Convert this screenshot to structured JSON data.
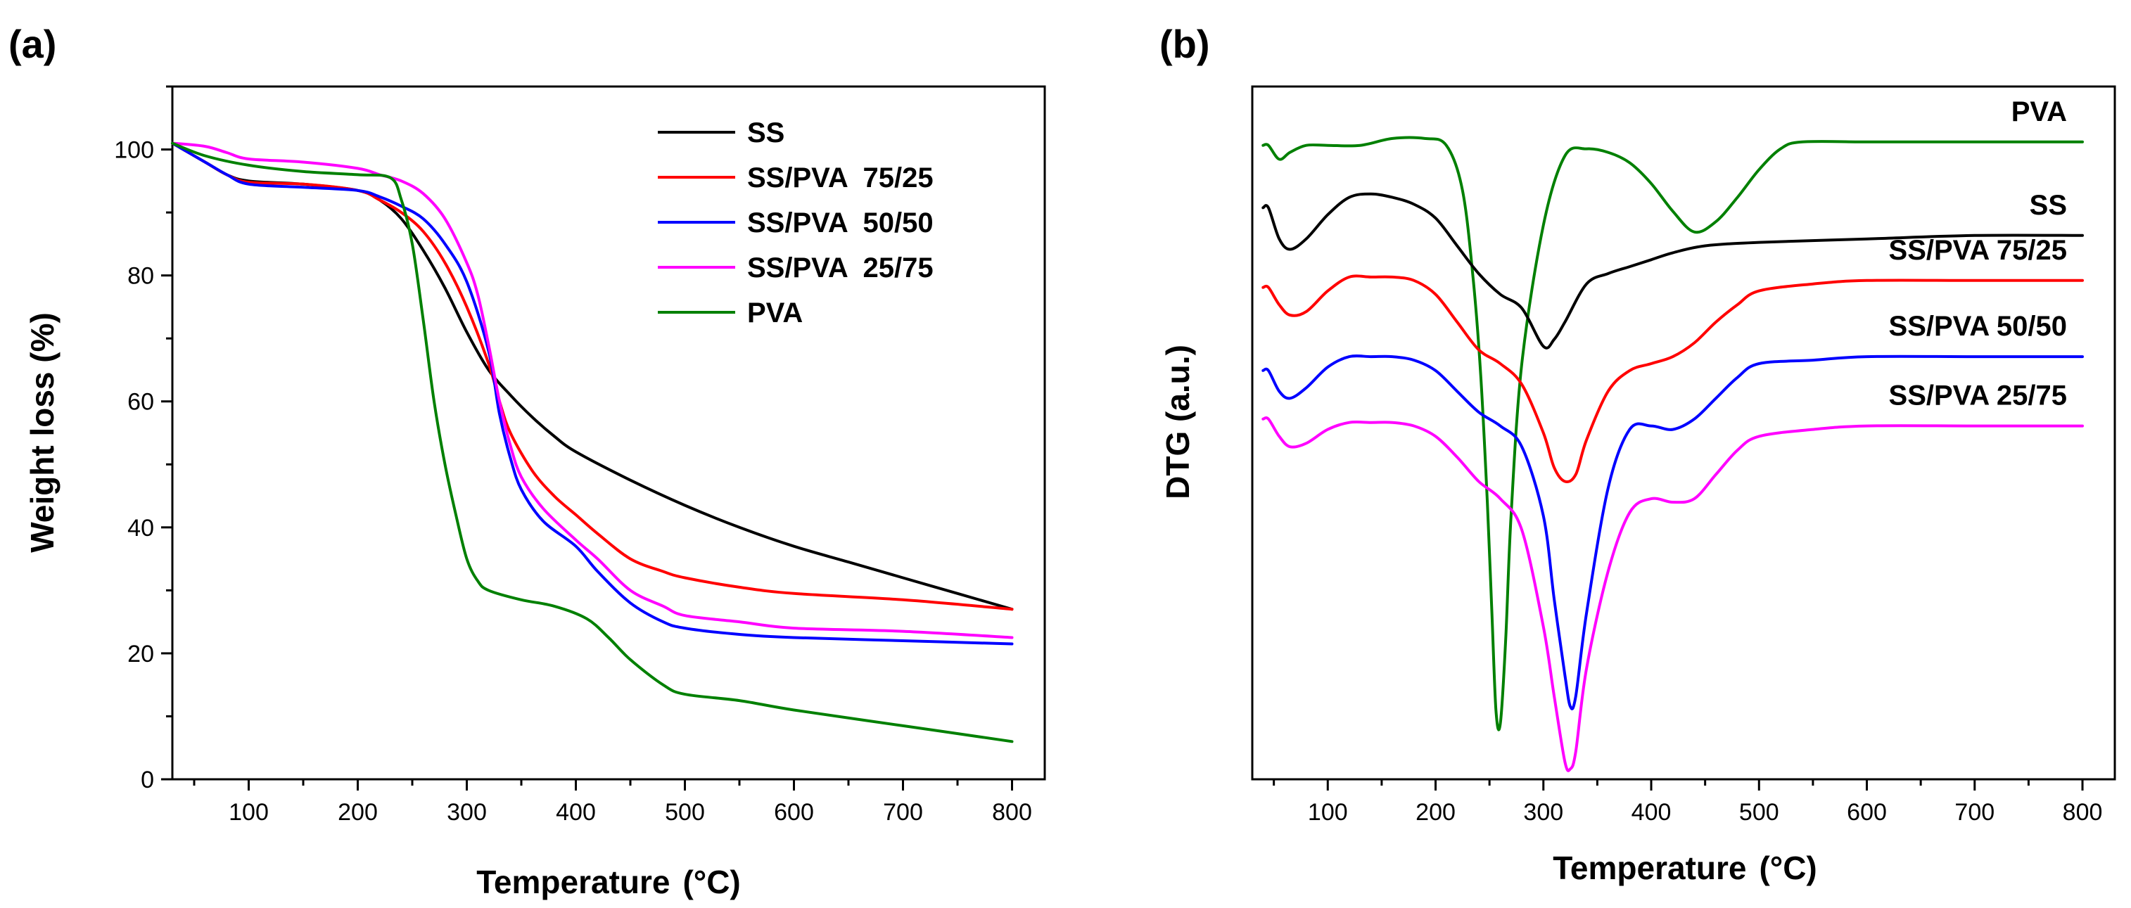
{
  "colors": {
    "SS": "#000000",
    "SS/PVA 75/25": "#ff0000",
    "SS/PVA 50/50": "#0000ff",
    "SS/PVA 25/75": "#ff00ff",
    "PVA": "#008000"
  },
  "chart_data": [
    {
      "id": "a",
      "panel_label": "(a)",
      "type": "line",
      "title": "",
      "xlabel": "Temperature",
      "xunit": "(°C)",
      "ylabel": "Weight loss (%)",
      "xlim": [
        30,
        830
      ],
      "ylim": [
        0,
        110
      ],
      "xticks": [
        100,
        200,
        300,
        400,
        500,
        600,
        700,
        800
      ],
      "yticks": [
        0,
        20,
        40,
        60,
        80,
        100
      ],
      "legend_position": "top-right",
      "legend": [
        "SS",
        "SS/PVA  75/25",
        "SS/PVA  50/50",
        "SS/PVA  25/75",
        "PVA"
      ],
      "series": [
        {
          "name": "SS",
          "color_key": "SS",
          "x": [
            30,
            60,
            80,
            100,
            150,
            200,
            220,
            240,
            260,
            280,
            300,
            320,
            340,
            360,
            380,
            400,
            450,
            500,
            550,
            600,
            650,
            700,
            750,
            800
          ],
          "y": [
            101,
            98,
            96,
            95,
            94.5,
            93.5,
            92,
            89,
            84,
            78,
            71,
            65,
            61,
            57.5,
            54.5,
            52,
            47.5,
            43.5,
            40,
            37,
            34.5,
            32,
            29.5,
            27
          ]
        },
        {
          "name": "SS/PVA  75/25",
          "color_key": "SS/PVA 75/25",
          "x": [
            30,
            60,
            80,
            100,
            150,
            200,
            220,
            240,
            260,
            280,
            300,
            320,
            330,
            340,
            360,
            380,
            400,
            420,
            450,
            480,
            500,
            550,
            600,
            700,
            800
          ],
          "y": [
            101,
            98,
            96,
            94.8,
            94.5,
            93.5,
            92,
            90,
            87,
            82,
            75,
            66,
            60,
            55,
            49,
            45,
            42,
            39,
            35,
            33,
            32,
            30.5,
            29.5,
            28.5,
            27
          ]
        },
        {
          "name": "SS/PVA  50/50",
          "color_key": "SS/PVA 50/50",
          "x": [
            30,
            60,
            80,
            100,
            150,
            200,
            220,
            240,
            260,
            280,
            300,
            320,
            330,
            340,
            350,
            370,
            400,
            420,
            450,
            480,
            500,
            550,
            600,
            700,
            800
          ],
          "y": [
            101,
            98,
            96,
            94.5,
            94,
            93.5,
            92.5,
            91,
            89,
            85,
            79,
            68,
            58,
            51,
            46,
            41,
            37,
            33,
            28,
            25,
            24,
            23,
            22.5,
            22,
            21.5
          ]
        },
        {
          "name": "SS/PVA  25/75",
          "color_key": "SS/PVA 25/75",
          "x": [
            30,
            60,
            80,
            100,
            150,
            200,
            220,
            240,
            260,
            280,
            300,
            310,
            320,
            330,
            340,
            350,
            370,
            400,
            420,
            450,
            480,
            500,
            550,
            600,
            700,
            800
          ],
          "y": [
            101,
            100.5,
            99.5,
            98.5,
            98,
            97,
            96,
            95,
            93,
            89,
            82,
            77,
            69,
            60,
            53,
            48,
            43,
            38,
            35,
            30,
            27.5,
            26,
            25,
            24,
            23.5,
            22.5
          ]
        },
        {
          "name": "PVA",
          "color_key": "PVA",
          "x": [
            30,
            60,
            100,
            150,
            200,
            230,
            240,
            250,
            260,
            270,
            280,
            290,
            300,
            310,
            320,
            350,
            380,
            410,
            430,
            450,
            480,
            500,
            550,
            600,
            700,
            800
          ],
          "y": [
            101,
            99,
            97.5,
            96.5,
            96,
            95.5,
            92,
            85,
            73,
            60,
            50,
            42,
            35,
            31.5,
            30,
            28.5,
            27.5,
            25.5,
            22.5,
            19,
            15,
            13.5,
            12.5,
            11,
            8.5,
            6
          ]
        }
      ]
    },
    {
      "id": "b",
      "panel_label": "(b)",
      "type": "line",
      "title": "",
      "xlabel": "Temperature",
      "xunit": "(°C)",
      "ylabel": "DTG (a.u.)",
      "xlim": [
        30,
        830
      ],
      "ylim": [
        0,
        100
      ],
      "xticks": [
        100,
        200,
        300,
        400,
        500,
        600,
        700,
        800
      ],
      "yticks": [],
      "series": [
        {
          "name": "PVA",
          "color_key": "PVA",
          "curve_label": "PVA",
          "x": [
            40,
            45,
            55,
            65,
            80,
            100,
            130,
            160,
            190,
            210,
            225,
            235,
            242,
            248,
            252,
            256,
            260,
            265,
            270,
            280,
            300,
            320,
            340,
            360,
            380,
            400,
            420,
            440,
            460,
            480,
            500,
            520,
            540,
            600,
            650,
            700,
            750,
            800
          ],
          "y": [
            91.5,
            91.5,
            89.5,
            90.5,
            91.5,
            91.5,
            91.5,
            92.5,
            92.5,
            91.5,
            85,
            72,
            58,
            40,
            25,
            10,
            8,
            20,
            38,
            60,
            80,
            90,
            91,
            90.5,
            89,
            86,
            82,
            79,
            80.5,
            84,
            88,
            91,
            92,
            92,
            92,
            92,
            92,
            92
          ]
        },
        {
          "name": "SS",
          "color_key": "SS",
          "curve_label": "SS",
          "x": [
            40,
            45,
            55,
            65,
            80,
            100,
            120,
            140,
            160,
            180,
            200,
            220,
            240,
            260,
            280,
            300,
            310,
            320,
            340,
            360,
            380,
            400,
            420,
            450,
            500,
            600,
            700,
            800
          ],
          "y": [
            82.5,
            82.5,
            78,
            76.5,
            78,
            81.5,
            84,
            84.5,
            84,
            83,
            81,
            77,
            73,
            70,
            68,
            62.5,
            63.5,
            66,
            71.5,
            73,
            74,
            75,
            76,
            77,
            77.5,
            78,
            78.5,
            78.5
          ]
        },
        {
          "name": "SS/PVA 75/25",
          "color_key": "SS/PVA 75/25",
          "curve_label": "SS/PVA 75/25",
          "x": [
            40,
            45,
            55,
            65,
            80,
            100,
            120,
            140,
            160,
            180,
            200,
            220,
            240,
            260,
            280,
            300,
            310,
            320,
            330,
            340,
            360,
            380,
            400,
            420,
            440,
            460,
            480,
            500,
            550,
            600,
            700,
            800
          ],
          "y": [
            71,
            71,
            68.5,
            67,
            67.5,
            70.5,
            72.5,
            72.5,
            72.5,
            72,
            70,
            66,
            62,
            60,
            57,
            50,
            45,
            43,
            44,
            49,
            56,
            59,
            60,
            61,
            63,
            66,
            68.5,
            70.5,
            71.5,
            72,
            72,
            72
          ]
        },
        {
          "name": "SS/PVA 50/50",
          "color_key": "SS/PVA 50/50",
          "curve_label": "SS/PVA 50/50",
          "x": [
            40,
            45,
            55,
            65,
            80,
            100,
            120,
            140,
            160,
            180,
            200,
            220,
            240,
            260,
            280,
            300,
            310,
            320,
            325,
            330,
            340,
            360,
            380,
            400,
            420,
            440,
            460,
            480,
            500,
            550,
            600,
            700,
            800
          ],
          "y": [
            59,
            59,
            56,
            55,
            56.5,
            59.5,
            61,
            61,
            61,
            60.5,
            59,
            56,
            53,
            51,
            48,
            38,
            26,
            15,
            10.5,
            12,
            24,
            42,
            50.5,
            51,
            50.5,
            52,
            55,
            58,
            60,
            60.5,
            61,
            61,
            61
          ]
        },
        {
          "name": "SS/PVA 25/75",
          "color_key": "SS/PVA 25/75",
          "curve_label": "SS/PVA 25/75",
          "x": [
            40,
            45,
            55,
            65,
            80,
            100,
            120,
            140,
            160,
            180,
            200,
            220,
            240,
            260,
            280,
            300,
            310,
            320,
            325,
            330,
            340,
            360,
            380,
            400,
            420,
            440,
            460,
            480,
            500,
            550,
            600,
            700,
            800
          ],
          "y": [
            52,
            52,
            49.5,
            48,
            48.5,
            50.5,
            51.5,
            51.5,
            51.5,
            51,
            49.5,
            46.5,
            43,
            40.5,
            36,
            22,
            12,
            2.5,
            1.5,
            4,
            16,
            30,
            38.5,
            40.5,
            40,
            40.5,
            44,
            47.5,
            49.5,
            50.5,
            51,
            51,
            51
          ]
        }
      ]
    }
  ]
}
